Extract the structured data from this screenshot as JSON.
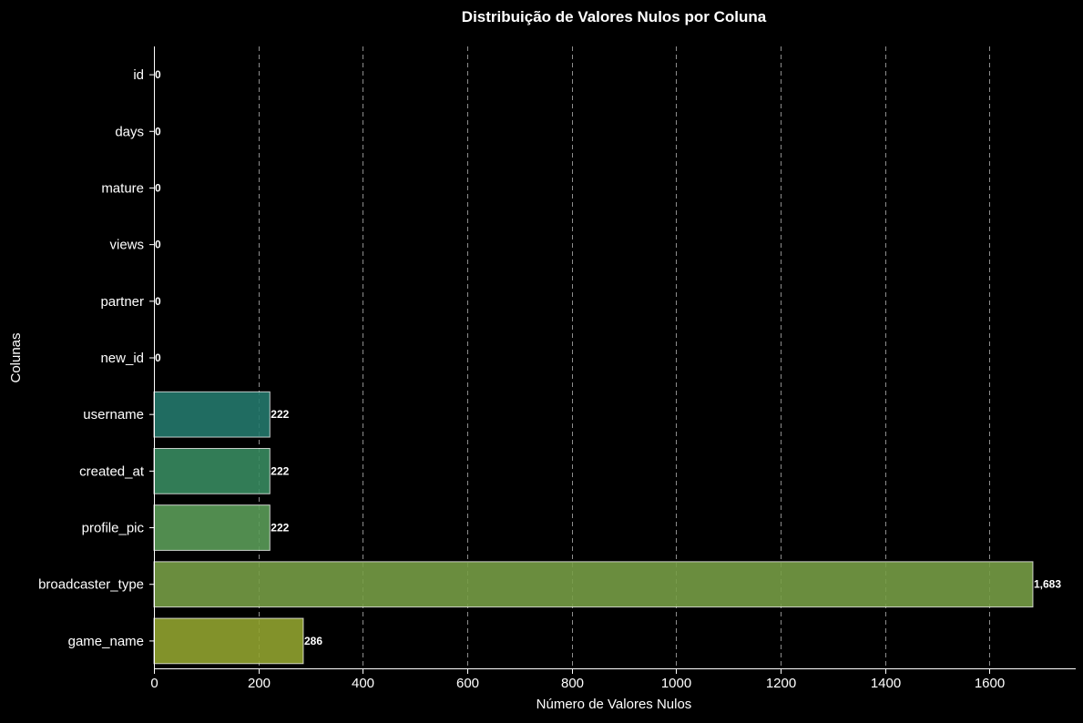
{
  "chart_data": {
    "type": "bar",
    "orientation": "horizontal",
    "title": "Distribuição de Valores Nulos por Coluna",
    "xlabel": "Número de Valores Nulos",
    "ylabel": "Colunas",
    "categories": [
      "id",
      "days",
      "mature",
      "views",
      "partner",
      "new_id",
      "username",
      "created_at",
      "profile_pic",
      "broadcaster_type",
      "game_name"
    ],
    "values": [
      0,
      0,
      0,
      0,
      0,
      0,
      222,
      222,
      222,
      1683,
      286
    ],
    "data_labels": [
      "0",
      "0",
      "0",
      "0",
      "0",
      "0",
      "222",
      "222",
      "222",
      "1,683",
      "286"
    ],
    "xlim": [
      0,
      1765
    ],
    "xticks": [
      0,
      200,
      400,
      600,
      800,
      1000,
      1200,
      1400,
      1600
    ],
    "xtick_labels": [
      "0",
      "200",
      "400",
      "600",
      "800",
      "1000",
      "1200",
      "1400",
      "1600"
    ],
    "grid": "x-dashed",
    "bar_colors": [
      "#440154",
      "#482374",
      "#404387",
      "#345f8d",
      "#29788e",
      "#1f908c",
      "#24786b",
      "#37895f",
      "#5a9b58",
      "#759c45",
      "#90a22f"
    ],
    "background": "#000000"
  }
}
